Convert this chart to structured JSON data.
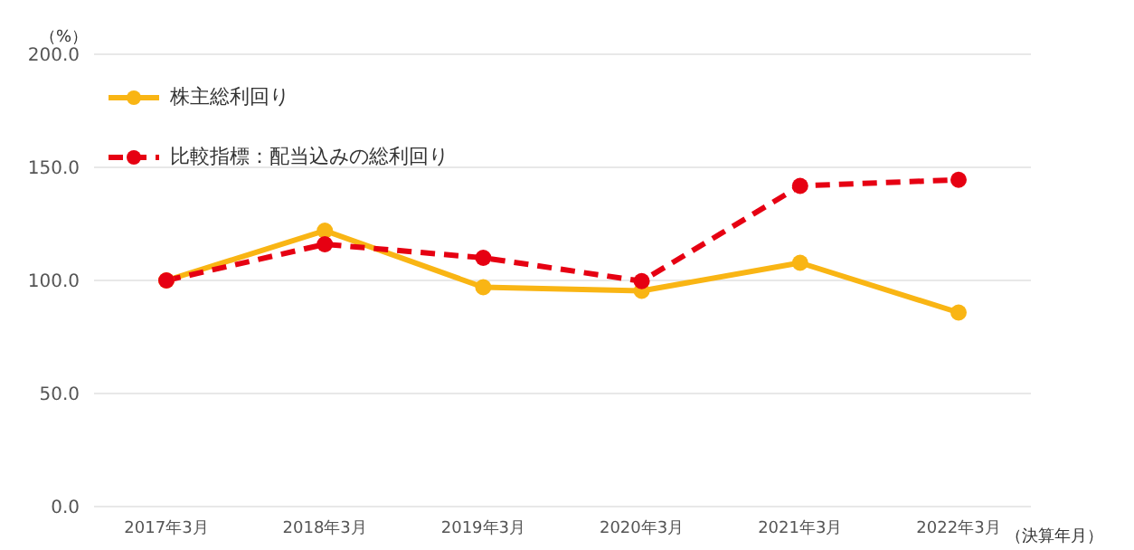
{
  "chart_data": {
    "type": "line",
    "ylabel": "（%）",
    "xlabel": "（決算年月）",
    "categories": [
      "2017年3月",
      "2018年3月",
      "2019年3月",
      "2020年3月",
      "2021年3月",
      "2022年3月"
    ],
    "series": [
      {
        "name": "株主総利回り",
        "color": "#f9b514",
        "line_style": "solid",
        "values": [
          100,
          122,
          97,
          95.4,
          107.8,
          85.8
        ]
      },
      {
        "name": "比較指標：配当込みの総利回り",
        "color": "#e60012",
        "line_style": "dashed",
        "values": [
          100,
          116,
          110,
          99.7,
          141.8,
          144.5
        ]
      }
    ],
    "ylim": [
      0,
      200
    ],
    "yticks": [
      {
        "value": 0,
        "label": "0.0"
      },
      {
        "value": 50,
        "label": "50.0"
      },
      {
        "value": 100,
        "label": "100.0"
      },
      {
        "value": 150,
        "label": "150.0"
      },
      {
        "value": 200,
        "label": "200.0"
      }
    ],
    "grid": "y",
    "legend": "top left",
    "marker": "circle"
  }
}
